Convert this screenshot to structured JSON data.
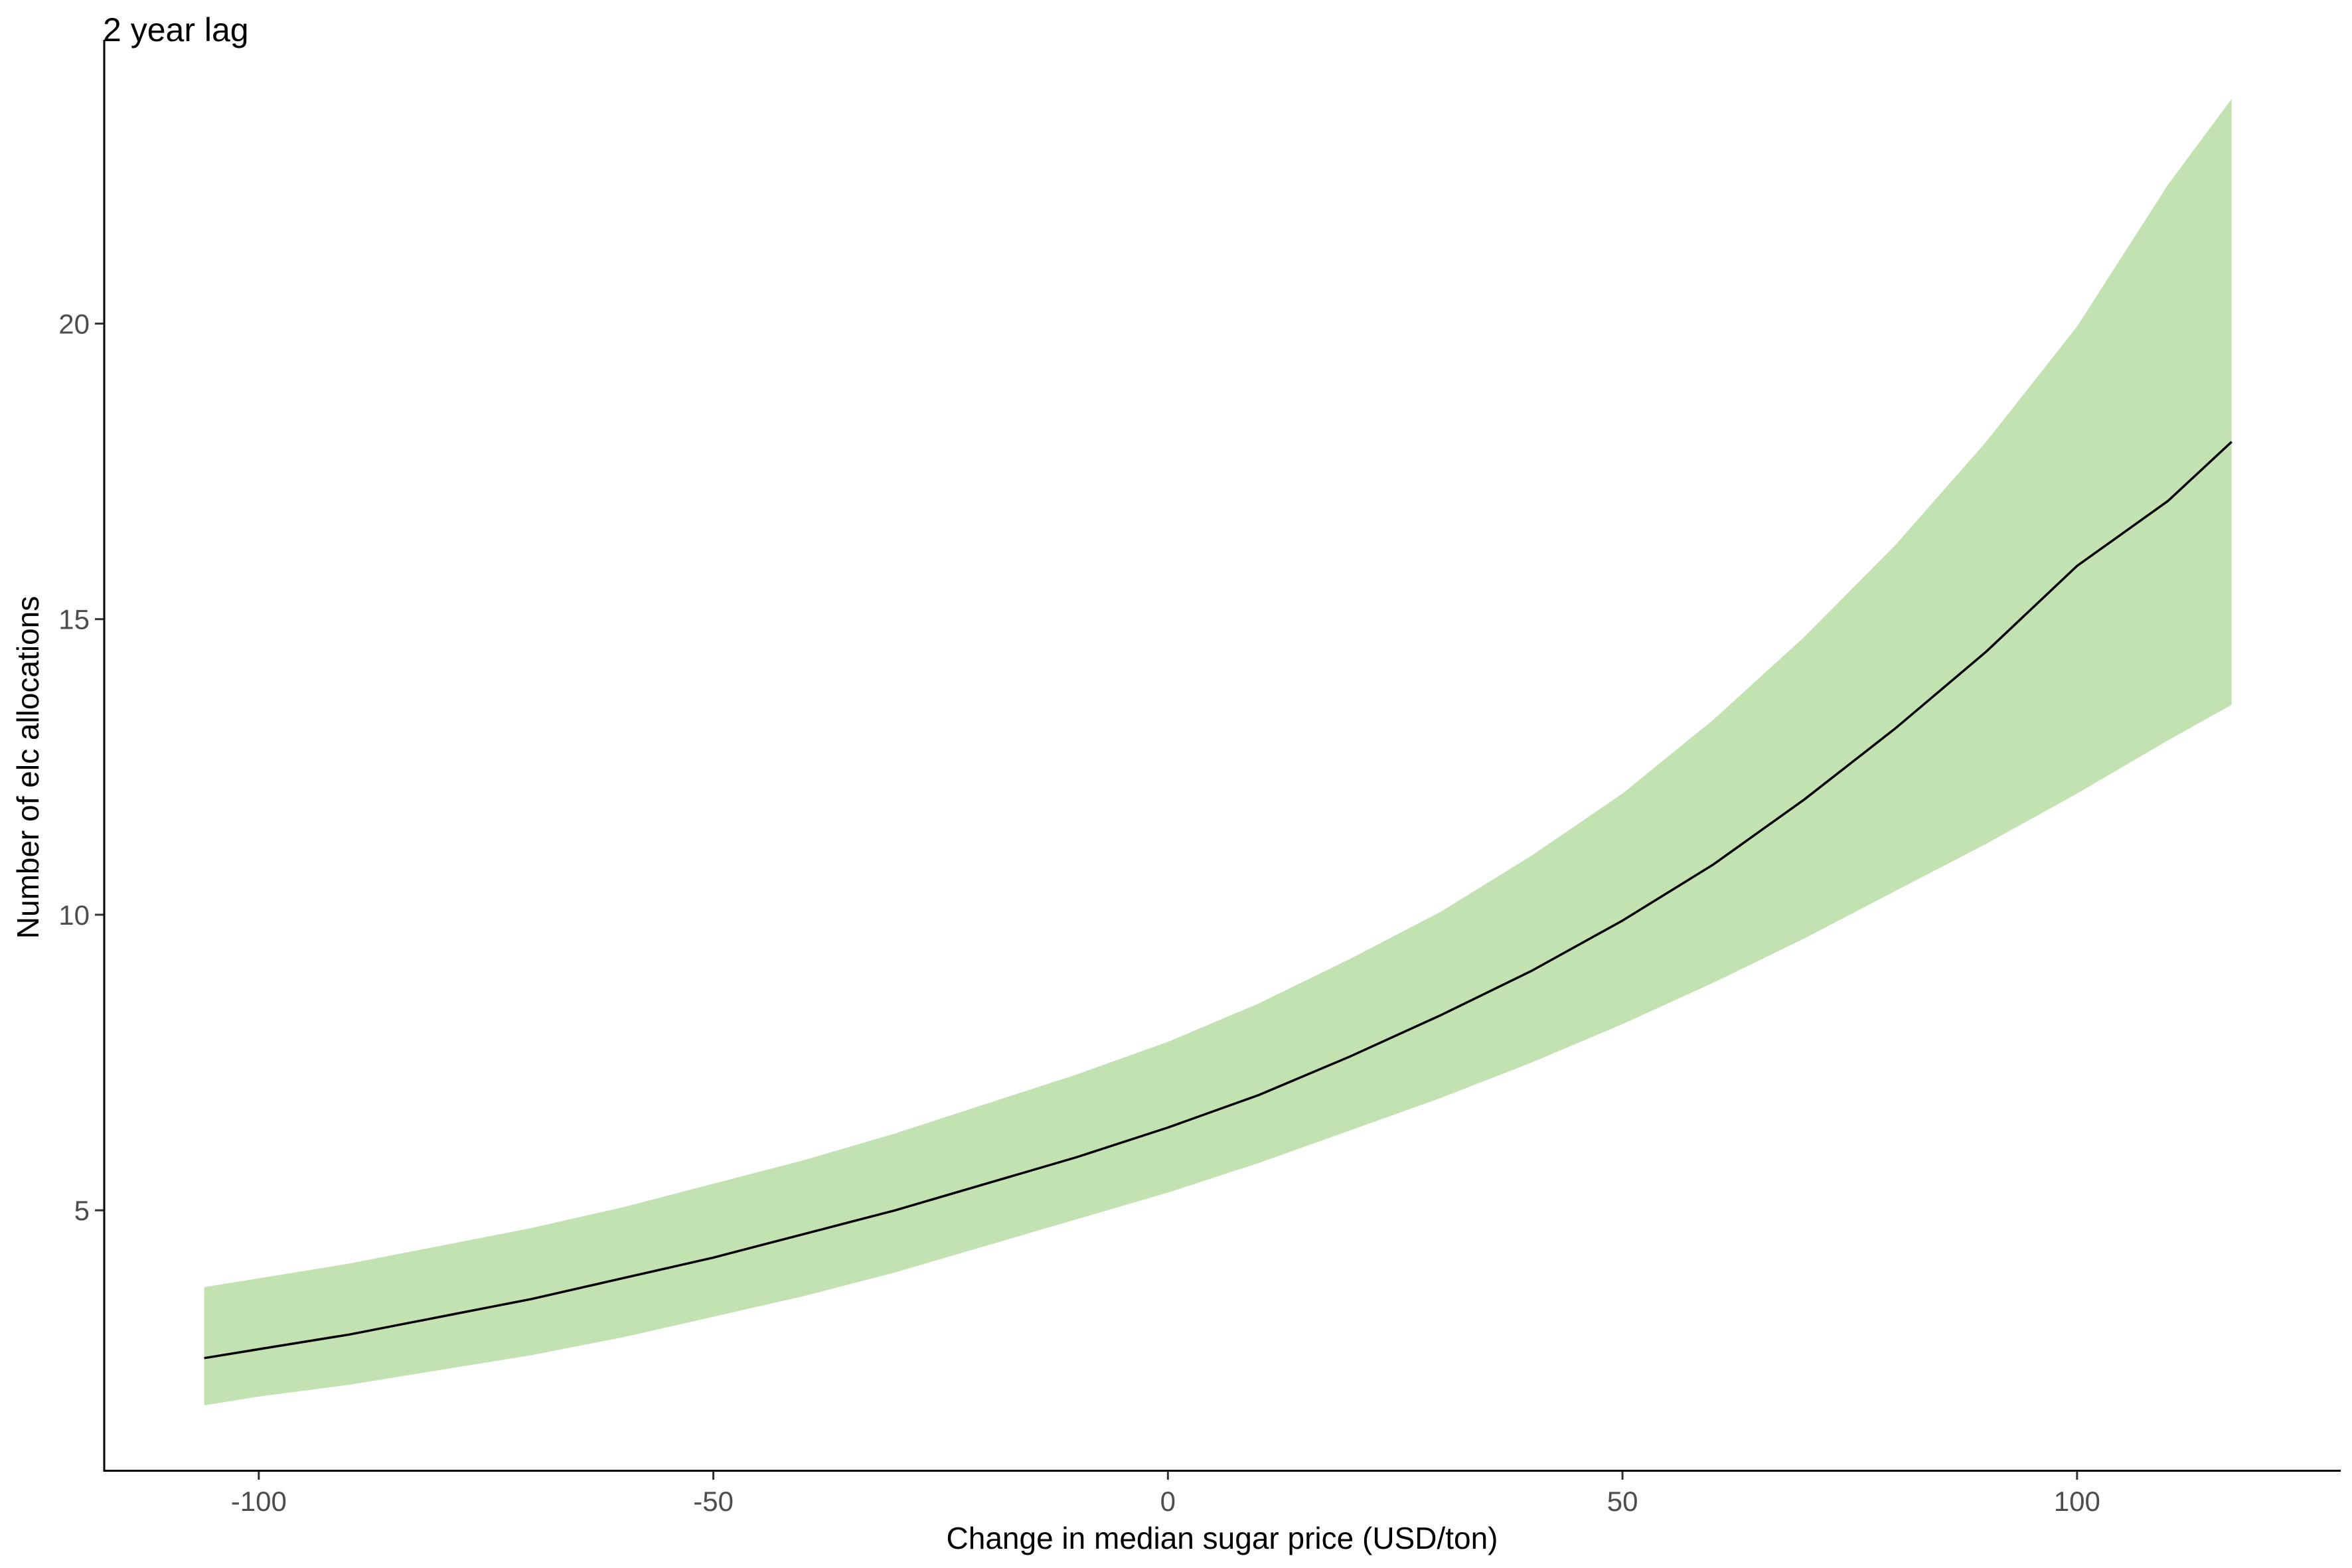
{
  "chart_data": {
    "type": "line",
    "title": "2 year lag",
    "xlabel": "Change in median sugar price (USD/ton)",
    "ylabel": "Number of elc allocations",
    "xlim": [
      -117,
      129
    ],
    "ylim": [
      0.6,
      24.8
    ],
    "xticks": [
      -100,
      -50,
      0,
      50,
      100
    ],
    "yticks": [
      5,
      10,
      15,
      20
    ],
    "grid": false,
    "ribbon_color": "#c2e2b2",
    "line_color": "#000000",
    "series": [
      {
        "x": [
          -106,
          -100,
          -90,
          -80,
          -70,
          -60,
          -50,
          -40,
          -30,
          -20,
          -10,
          0,
          10,
          20,
          30,
          40,
          50,
          60,
          70,
          80,
          90,
          100,
          110,
          117
        ],
        "y": [
          2.5,
          2.65,
          2.9,
          3.2,
          3.5,
          3.85,
          4.2,
          4.6,
          5.0,
          5.45,
          5.9,
          6.4,
          6.95,
          7.6,
          8.3,
          9.05,
          9.9,
          10.85,
          11.95,
          13.15,
          14.45,
          15.9,
          17.0,
          18.0
        ],
        "lower": [
          1.7,
          1.85,
          2.05,
          2.3,
          2.55,
          2.85,
          3.2,
          3.55,
          3.95,
          4.4,
          4.85,
          5.3,
          5.8,
          6.35,
          6.9,
          7.5,
          8.15,
          8.85,
          9.6,
          10.4,
          11.2,
          12.05,
          12.95,
          13.55
        ],
        "upper": [
          3.7,
          3.85,
          4.1,
          4.4,
          4.7,
          5.05,
          5.45,
          5.85,
          6.3,
          6.8,
          7.3,
          7.85,
          8.5,
          9.25,
          10.05,
          11.0,
          12.05,
          13.3,
          14.7,
          16.25,
          18.0,
          19.95,
          22.35,
          23.8
        ]
      }
    ]
  }
}
